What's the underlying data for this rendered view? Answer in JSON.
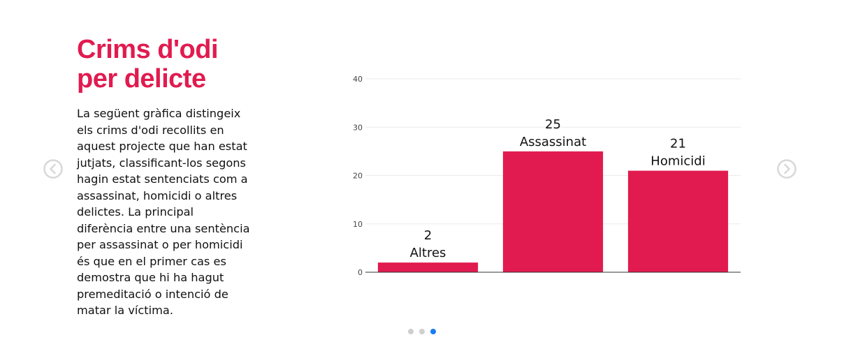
{
  "title_lines": [
    "Crims d'odi",
    "per delicte"
  ],
  "description_lines": [
    "La següent gràfica distingeix",
    "els crims d'odi recollits en",
    "aquest projecte que han estat",
    "jutjats, classificant-los segons",
    "hagin estat sentenciats com a",
    "assassinat, homicidi o altres",
    "delictes. La principal",
    "diferència entre una sentència",
    "per assassinat o per homicidi",
    "és que en el primer cas es",
    "demostra que hi ha hagut",
    "premeditació o intenció de",
    "matar la víctima."
  ],
  "icons": {
    "prev": "chevron-left-circle-icon",
    "next": "chevron-right-circle-icon"
  },
  "carousel": {
    "slide_count": 3,
    "active_index": 2
  },
  "colors": {
    "accent": "#e11b4f",
    "bar": "#e11b4f",
    "dot_active": "#1a7cf0",
    "dot_inactive": "#cfcfcf",
    "arrow": "#d8d8d8"
  },
  "chart_data": {
    "type": "bar",
    "categories": [
      "Altres",
      "Assassinat",
      "Homicidi"
    ],
    "values": [
      2,
      25,
      21
    ],
    "title": "Crims d'odi per delicte",
    "xlabel": "",
    "ylabel": "",
    "ylim": [
      0,
      40
    ],
    "yticks": [
      0,
      10,
      20,
      30,
      40
    ],
    "grid": true,
    "data_labels": true
  }
}
